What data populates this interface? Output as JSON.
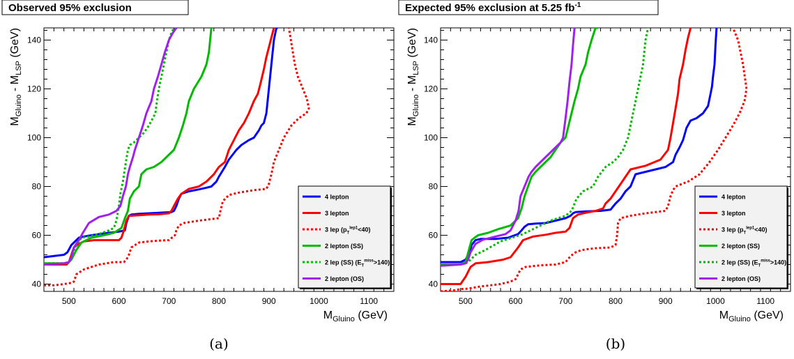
{
  "chart_data": [
    {
      "type": "line",
      "title": "Observed 95% exclusion",
      "title_sup": "",
      "caption": "(a)",
      "xlabel": "M",
      "xlabel_sub": "Gluino",
      "xlabel_unit": " (GeV)",
      "ylabel": "M",
      "ylabel_sub1": "Gluino",
      "ylabel_mid": " - M",
      "ylabel_sub2": "LSP",
      "ylabel_unit": " (GeV)",
      "xlim": [
        450,
        1150
      ],
      "ylim": [
        37,
        145
      ],
      "xticks": [
        500,
        600,
        700,
        800,
        900,
        1000,
        1100
      ],
      "yticks": [
        40,
        60,
        80,
        100,
        120,
        140
      ],
      "legend_position": "bottom-right",
      "series": [
        {
          "name": "4 lepton",
          "color": "#0000ff",
          "dashed": false,
          "x": [
            450,
            490,
            497,
            505,
            515,
            520,
            530,
            545,
            560,
            580,
            600,
            612,
            615,
            620,
            625,
            640,
            660,
            680,
            705,
            710,
            715,
            720,
            725,
            740,
            760,
            775,
            785,
            795,
            800,
            812,
            820,
            835,
            845,
            860,
            870,
            880,
            885,
            890,
            895,
            900,
            905,
            910,
            915,
            918
          ],
          "y": [
            51,
            52,
            53,
            56,
            58,
            59,
            59.5,
            60,
            60.5,
            61,
            61.5,
            62,
            65,
            68,
            68.5,
            68.8,
            69,
            69.2,
            69.5,
            70,
            72,
            75,
            77,
            78,
            78.8,
            79.5,
            80,
            82,
            84,
            88,
            91,
            95,
            97,
            99,
            100,
            103,
            105,
            106,
            110,
            120,
            130,
            140,
            145,
            145
          ]
        },
        {
          "name": "3 lepton",
          "color": "#ff0000",
          "dashed": false,
          "x": [
            450,
            495,
            500,
            505,
            510,
            520,
            530,
            550,
            580,
            600,
            605,
            610,
            615,
            620,
            625,
            640,
            660,
            680,
            700,
            705,
            710,
            718,
            725,
            740,
            760,
            775,
            780,
            790,
            800,
            812,
            820,
            830,
            840,
            850,
            860,
            870,
            878,
            883,
            890,
            895,
            900,
            905,
            910
          ],
          "y": [
            48,
            48,
            49,
            52,
            55,
            56.5,
            57.5,
            58,
            58,
            58,
            59,
            62,
            66,
            68,
            68,
            68.2,
            68.5,
            68.6,
            69,
            70,
            72,
            75,
            77,
            79,
            80,
            82,
            83,
            85,
            88,
            90,
            95,
            99,
            103,
            106,
            110,
            115,
            118,
            122,
            128,
            133,
            137,
            141,
            145
          ]
        },
        {
          "name": "3 lep (p_T^{lep1}<40)",
          "color": "#ff0000",
          "dashed": true,
          "x": [
            450,
            470,
            490,
            505,
            510,
            515,
            530,
            560,
            590,
            610,
            615,
            620,
            625,
            640,
            660,
            680,
            700,
            712,
            715,
            720,
            730,
            760,
            800,
            803,
            808,
            820,
            840,
            870,
            895,
            900,
            905,
            910,
            920,
            930,
            945,
            960,
            975,
            980,
            976,
            968,
            958,
            952,
            948,
            944,
            940
          ],
          "y": [
            39.5,
            39.5,
            40,
            40.5,
            41,
            44,
            46,
            48,
            49,
            49,
            50,
            52,
            55,
            57,
            57.5,
            57.8,
            58,
            60,
            62,
            64,
            65,
            66,
            67,
            70,
            74,
            76.5,
            77.5,
            78.5,
            79,
            81,
            85,
            90,
            95,
            100,
            105,
            108,
            110,
            112,
            116,
            120,
            125,
            130,
            135,
            140,
            145
          ]
        },
        {
          "name": "2 lepton (SS)",
          "color": "#00bb00",
          "dashed": false,
          "x": [
            450,
            490,
            500,
            505,
            510,
            515,
            525,
            545,
            570,
            590,
            605,
            612,
            618,
            622,
            630,
            640,
            645,
            655,
            670,
            685,
            700,
            710,
            720,
            728,
            735,
            740,
            750,
            765,
            775,
            780,
            785
          ],
          "y": [
            48.5,
            48.5,
            49,
            50,
            52,
            54,
            57,
            59,
            60,
            61,
            63,
            67,
            70,
            75,
            78,
            80,
            85,
            87,
            88,
            90,
            93,
            95,
            100,
            105,
            110,
            115,
            120,
            125,
            130,
            135,
            145
          ]
        },
        {
          "name": "2 lep (SS) (E_T^{miss}>140)",
          "color": "#00bb00",
          "dashed": true,
          "x": [
            450,
            490,
            500,
            505,
            510,
            518,
            525,
            540,
            560,
            580,
            590,
            595,
            600,
            603,
            608,
            614,
            618,
            622,
            630,
            640,
            650,
            660,
            668,
            673,
            676,
            680,
            685,
            690,
            695,
            700,
            705,
            710,
            715
          ],
          "y": [
            48.5,
            48.5,
            49,
            51,
            54,
            57,
            59,
            59.5,
            60.5,
            62,
            63,
            66,
            72,
            77,
            82,
            90,
            95,
            97,
            98,
            100,
            102,
            105,
            108,
            110,
            115,
            120,
            125,
            130,
            135,
            140,
            143,
            145,
            145
          ]
        },
        {
          "name": "2 lepton (OS)",
          "color": "#a020f0",
          "dashed": false,
          "x": [
            450,
            490,
            500,
            505,
            510,
            520,
            528,
            540,
            560,
            580,
            595,
            603,
            608,
            614,
            618,
            622,
            628,
            632,
            640,
            648,
            655,
            665,
            670,
            678,
            685,
            692,
            700,
            708,
            715
          ],
          "y": [
            48,
            48.5,
            49,
            51,
            55,
            58,
            61,
            65,
            67.5,
            68.5,
            70,
            72,
            76,
            80,
            85,
            88,
            92,
            95,
            100,
            105,
            110,
            115,
            120,
            125,
            130,
            135,
            140,
            143,
            145
          ]
        }
      ]
    },
    {
      "type": "line",
      "title": "Expected 95% exclusion at 5.25 fb",
      "title_sup": "-1",
      "caption": "(b)",
      "xlabel": "M",
      "xlabel_sub": "Gluino",
      "xlabel_unit": " (GeV)",
      "ylabel": "M",
      "ylabel_sub1": "Gluino",
      "ylabel_mid": " - M",
      "ylabel_sub2": "LSP",
      "ylabel_unit": " (GeV)",
      "xlim": [
        450,
        1150
      ],
      "ylim": [
        37,
        145
      ],
      "xticks": [
        500,
        600,
        700,
        800,
        900,
        1000,
        1100
      ],
      "yticks": [
        40,
        60,
        80,
        100,
        120,
        140
      ],
      "legend_position": "bottom-right",
      "series": [
        {
          "name": "4 lepton",
          "color": "#0000ff",
          "dashed": false,
          "x": [
            450,
            490,
            500,
            508,
            512,
            516,
            520,
            530,
            560,
            585,
            605,
            612,
            618,
            625,
            640,
            660,
            680,
            700,
            710,
            715,
            720,
            740,
            770,
            790,
            800,
            810,
            820,
            830,
            840,
            860,
            880,
            900,
            915,
            920,
            928,
            935,
            942,
            950,
            962,
            975,
            985,
            990,
            993,
            995,
            998,
            1000,
            1002
          ],
          "y": [
            49,
            49,
            50,
            53,
            56,
            57,
            58,
            58.5,
            58.5,
            59,
            60.5,
            62,
            63.5,
            64.5,
            64.8,
            65,
            66,
            67,
            68,
            69,
            69.5,
            69.8,
            70,
            70.5,
            73,
            75,
            78,
            80,
            85,
            86,
            87,
            88,
            90,
            93,
            96,
            99,
            104,
            107,
            108,
            110,
            113,
            118,
            121,
            125,
            130,
            138,
            145
          ]
        },
        {
          "name": "3 lepton",
          "color": "#ff0000",
          "dashed": false,
          "x": [
            450,
            490,
            500,
            510,
            520,
            545,
            575,
            590,
            605,
            615,
            635,
            660,
            680,
            700,
            708,
            715,
            725,
            740,
            760,
            775,
            780,
            790,
            800,
            810,
            820,
            830,
            860,
            890,
            905,
            910,
            915,
            920,
            925,
            928,
            935,
            940,
            945,
            950
          ],
          "y": [
            40,
            40,
            43,
            47,
            48.5,
            49,
            50,
            51,
            55,
            58,
            59.5,
            60.2,
            61,
            61.5,
            63,
            67,
            68.5,
            69.2,
            70,
            71,
            73,
            75,
            78,
            81,
            84,
            87,
            88.5,
            91,
            95,
            100,
            106,
            112,
            118,
            124,
            130,
            136,
            141,
            145
          ]
        },
        {
          "name": "3 lep (p_T^{lep1}<40)",
          "color": "#ff0000",
          "dashed": true,
          "x": [
            450,
            480,
            490,
            500,
            505,
            510,
            515,
            530,
            550,
            570,
            590,
            600,
            605,
            610,
            620,
            640,
            660,
            680,
            700,
            710,
            720,
            730,
            740,
            760,
            790,
            800,
            803,
            805,
            810,
            830,
            860,
            900,
            905,
            910,
            915,
            920,
            945,
            968,
            988,
            1005,
            1020,
            1035,
            1048,
            1058,
            1062,
            1055,
            1045,
            1035
          ],
          "y": [
            37,
            37.5,
            38,
            38,
            38.2,
            38.3,
            38.5,
            39,
            39.5,
            40,
            41,
            42,
            44,
            46,
            47,
            47.5,
            47.8,
            48,
            49,
            51.5,
            53,
            53.8,
            54.2,
            54.7,
            55,
            56,
            60,
            65,
            67,
            68,
            69,
            70,
            72,
            76,
            78.5,
            80,
            82,
            85,
            90,
            95,
            100,
            105,
            110,
            115,
            120,
            130,
            140,
            145
          ]
        },
        {
          "name": "2 lepton (SS)",
          "color": "#00bb00",
          "dashed": false,
          "x": [
            450,
            490,
            500,
            508,
            512,
            518,
            525,
            545,
            565,
            590,
            605,
            612,
            618,
            625,
            632,
            640,
            650,
            660,
            670,
            680,
            690,
            700,
            706,
            712,
            718,
            725,
            730,
            740,
            745,
            752,
            760,
            765
          ],
          "y": [
            48,
            48,
            49,
            55,
            58,
            59,
            60,
            61,
            62.5,
            64,
            67,
            71,
            76,
            80,
            84,
            86,
            88,
            90,
            92,
            95,
            98,
            100,
            105,
            110,
            115,
            120,
            125,
            130,
            135,
            140,
            145,
            145
          ]
        },
        {
          "name": "2 lep (SS) (E_T^{miss}>140)",
          "color": "#00bb00",
          "dashed": true,
          "x": [
            450,
            490,
            500,
            505,
            510,
            520,
            540,
            570,
            600,
            615,
            630,
            650,
            670,
            685,
            700,
            712,
            722,
            735,
            745,
            755,
            765,
            780,
            795,
            805,
            815,
            825,
            830,
            835,
            840,
            845,
            850,
            855,
            860,
            865
          ],
          "y": [
            48,
            48,
            48.5,
            49,
            50,
            52,
            54,
            57.5,
            59.5,
            60.5,
            62,
            64,
            66,
            67,
            68,
            70,
            75,
            78,
            79,
            80,
            84,
            88,
            90,
            92,
            95,
            100,
            105,
            110,
            115,
            120,
            125,
            130,
            140,
            145
          ]
        },
        {
          "name": "2 lepton (OS)",
          "color": "#a020f0",
          "dashed": false,
          "x": [
            450,
            490,
            500,
            505,
            510,
            520,
            535,
            560,
            580,
            590,
            600,
            606,
            610,
            618,
            626,
            632,
            640,
            650,
            660,
            670,
            680,
            690,
            695,
            700,
            704,
            708,
            712,
            715,
            718
          ],
          "y": [
            47.5,
            48,
            48.5,
            50,
            53,
            56.5,
            58.2,
            59.5,
            60.5,
            62,
            66,
            70,
            76,
            80,
            84,
            86,
            88,
            90,
            92,
            94,
            96,
            98,
            100,
            108,
            115,
            123,
            130,
            138,
            145
          ]
        }
      ]
    }
  ]
}
